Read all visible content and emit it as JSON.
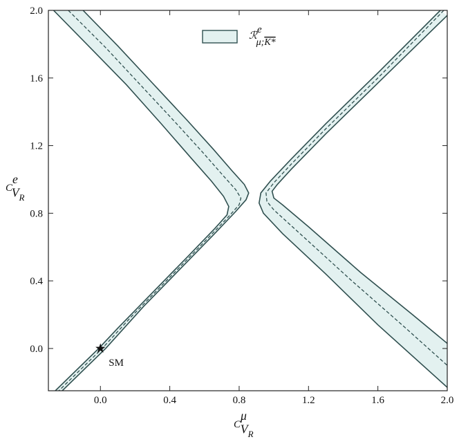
{
  "chart_data": {
    "type": "contour",
    "x_label": {
      "base": "C",
      "sup": "μ",
      "sub": "V",
      "subsub": "R"
    },
    "y_label": {
      "base": "C",
      "sup": "e",
      "sub": "V",
      "subsub": "R"
    },
    "xlim": [
      -0.3,
      2.0
    ],
    "ylim": [
      -0.25,
      2.0
    ],
    "xticks": [
      {
        "value": 0,
        "label": "0.0"
      },
      0.4,
      0.8,
      1.2,
      1.6,
      {
        "value": 2,
        "label": "2.0"
      }
    ],
    "yticks": [
      {
        "value": 0,
        "label": "0.0"
      },
      0.4,
      0.8,
      1.2,
      1.6,
      {
        "value": 2,
        "label": "2.0"
      }
    ],
    "band": {
      "label": {
        "base": "ℛ",
        "sup": "e",
        "sub": "μ;",
        "overlined": "K*"
      },
      "fill": "#e3f1f0",
      "edge": "#2f4f4f",
      "branches": [
        {
          "edge_a": {
            "x": [
              -0.1,
              0.1,
              0.3,
              0.5,
              0.65,
              0.76,
              0.83,
              0.855,
              0.84,
              0.78,
              0.65,
              0.45,
              0.25,
              0.03,
              -0.22
            ],
            "y": [
              2.0,
              1.79,
              1.57,
              1.35,
              1.18,
              1.05,
              0.97,
              0.92,
              0.88,
              0.81,
              0.67,
              0.46,
              0.25,
              0.0,
              -0.25
            ]
          },
          "edge_b": {
            "x": [
              -0.27,
              -0.05,
              0.15,
              0.35,
              0.52,
              0.64,
              0.71,
              0.74,
              0.73,
              0.66,
              0.5,
              0.3,
              0.1,
              -0.01,
              -0.26
            ],
            "y": [
              2.0,
              1.77,
              1.56,
              1.33,
              1.13,
              0.99,
              0.9,
              0.84,
              0.79,
              0.71,
              0.54,
              0.33,
              0.12,
              0.0,
              -0.25
            ]
          },
          "center": {
            "x": [
              -0.185,
              0.03,
              0.23,
              0.43,
              0.59,
              0.71,
              0.78,
              0.81,
              0.8,
              0.73,
              0.58,
              0.38,
              0.18,
              0.01,
              -0.24
            ],
            "y": [
              2.0,
              1.78,
              1.56,
              1.34,
              1.16,
              1.02,
              0.94,
              0.89,
              0.85,
              0.77,
              0.61,
              0.4,
              0.19,
              0.0,
              -0.25
            ]
          }
        },
        {
          "edge_a": {
            "x": [
              2.0,
              1.6,
              1.3,
              1.1,
              1.02,
              0.99,
              1.0,
              1.05,
              1.2,
              1.5,
              1.8,
              2.0
            ],
            "y": [
              1.97,
              1.57,
              1.27,
              1.06,
              0.97,
              0.93,
              0.89,
              0.85,
              0.72,
              0.45,
              0.2,
              0.03
            ]
          },
          "edge_b": {
            "x": [
              1.96,
              1.6,
              1.3,
              1.1,
              0.98,
              0.925,
              0.915,
              0.94,
              1.05,
              1.3,
              1.6,
              2.0
            ],
            "y": [
              2.0,
              1.63,
              1.33,
              1.12,
              0.99,
              0.92,
              0.86,
              0.8,
              0.68,
              0.44,
              0.14,
              -0.23
            ]
          },
          "center": {
            "x": [
              1.98,
              1.6,
              1.3,
              1.1,
              1.0,
              0.955,
              0.96,
              1.0,
              1.15,
              1.45,
              1.75,
              2.0
            ],
            "y": [
              2.0,
              1.6,
              1.3,
              1.09,
              0.98,
              0.92,
              0.87,
              0.82,
              0.68,
              0.4,
              0.13,
              -0.1
            ]
          }
        }
      ]
    },
    "points": [
      {
        "x": 0,
        "y": 0,
        "label": "SM"
      }
    ]
  }
}
